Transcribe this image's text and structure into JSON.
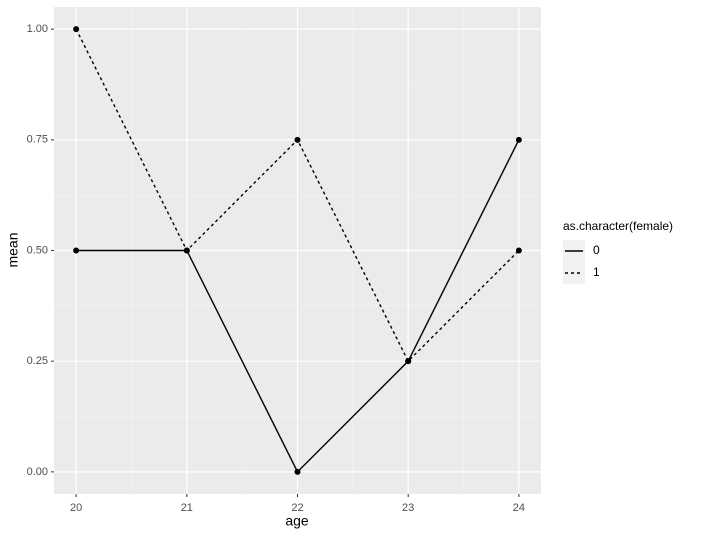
{
  "chart_data": {
    "type": "line",
    "x_label": "age",
    "y_label": "mean",
    "x": [
      20,
      21,
      22,
      23,
      24
    ],
    "series": [
      {
        "name": "0",
        "color": "#000000",
        "linetype": "solid",
        "values": [
          0.5,
          0.5,
          0,
          0.25,
          0.75
        ]
      },
      {
        "name": "1",
        "color": "#000000",
        "linetype": "dashed",
        "values": [
          1,
          0.5,
          0.75,
          0.25,
          0.5
        ]
      }
    ],
    "legend_title": "as.character(female)",
    "legend_position": "right",
    "xlim": [
      19.8,
      24.2
    ],
    "xticks": [
      20,
      21,
      22,
      23,
      24
    ],
    "ylim": [
      -0.05,
      1.05
    ],
    "yticks": [
      {
        "value": 0,
        "label": "0.00"
      },
      0.25,
      {
        "value": 0.5,
        "label": "0.50"
      },
      0.75,
      {
        "value": 1,
        "label": "1.00"
      }
    ],
    "grid": true
  }
}
